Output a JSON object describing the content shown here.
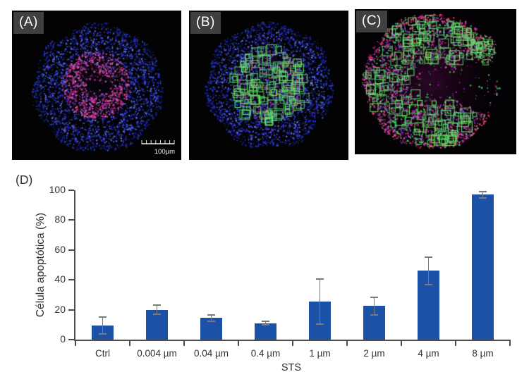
{
  "micrographs": [
    {
      "label": "(A)",
      "scale_bar": "100µm"
    },
    {
      "label": "(B)"
    },
    {
      "label": "(C)"
    }
  ],
  "colors": {
    "nuclei_blue": "#2b3ec4",
    "apoptotic_pink": "#cc4da4",
    "marker_green": "#57c96a",
    "rim_pink": "#d94f86",
    "panel_background": "#000000",
    "label_box": "#3f3f3f"
  },
  "chart_data": {
    "type": "bar",
    "panel_label": "(D)",
    "categories": [
      "Ctrl",
      "0.004 µm",
      "0.04 µm",
      "0.4 µm",
      "1 µm",
      "2 µm",
      "4 µm",
      "8 µm"
    ],
    "values": [
      9.5,
      20,
      14.5,
      11,
      25.5,
      22.5,
      46,
      97
    ],
    "errors": [
      5.5,
      3,
      2,
      1.2,
      15,
      6,
      9,
      2
    ],
    "xlabel": "STS",
    "ylabel": "Célula apoptótica (%)",
    "ylim": [
      0,
      100
    ],
    "yticks": [
      0,
      20,
      40,
      60,
      80,
      100
    ],
    "grid": false,
    "legend": null,
    "bar_color": "#1b52a8",
    "error_bar_color": "#7a7a7a",
    "axis_color": "#4d4d4d"
  }
}
